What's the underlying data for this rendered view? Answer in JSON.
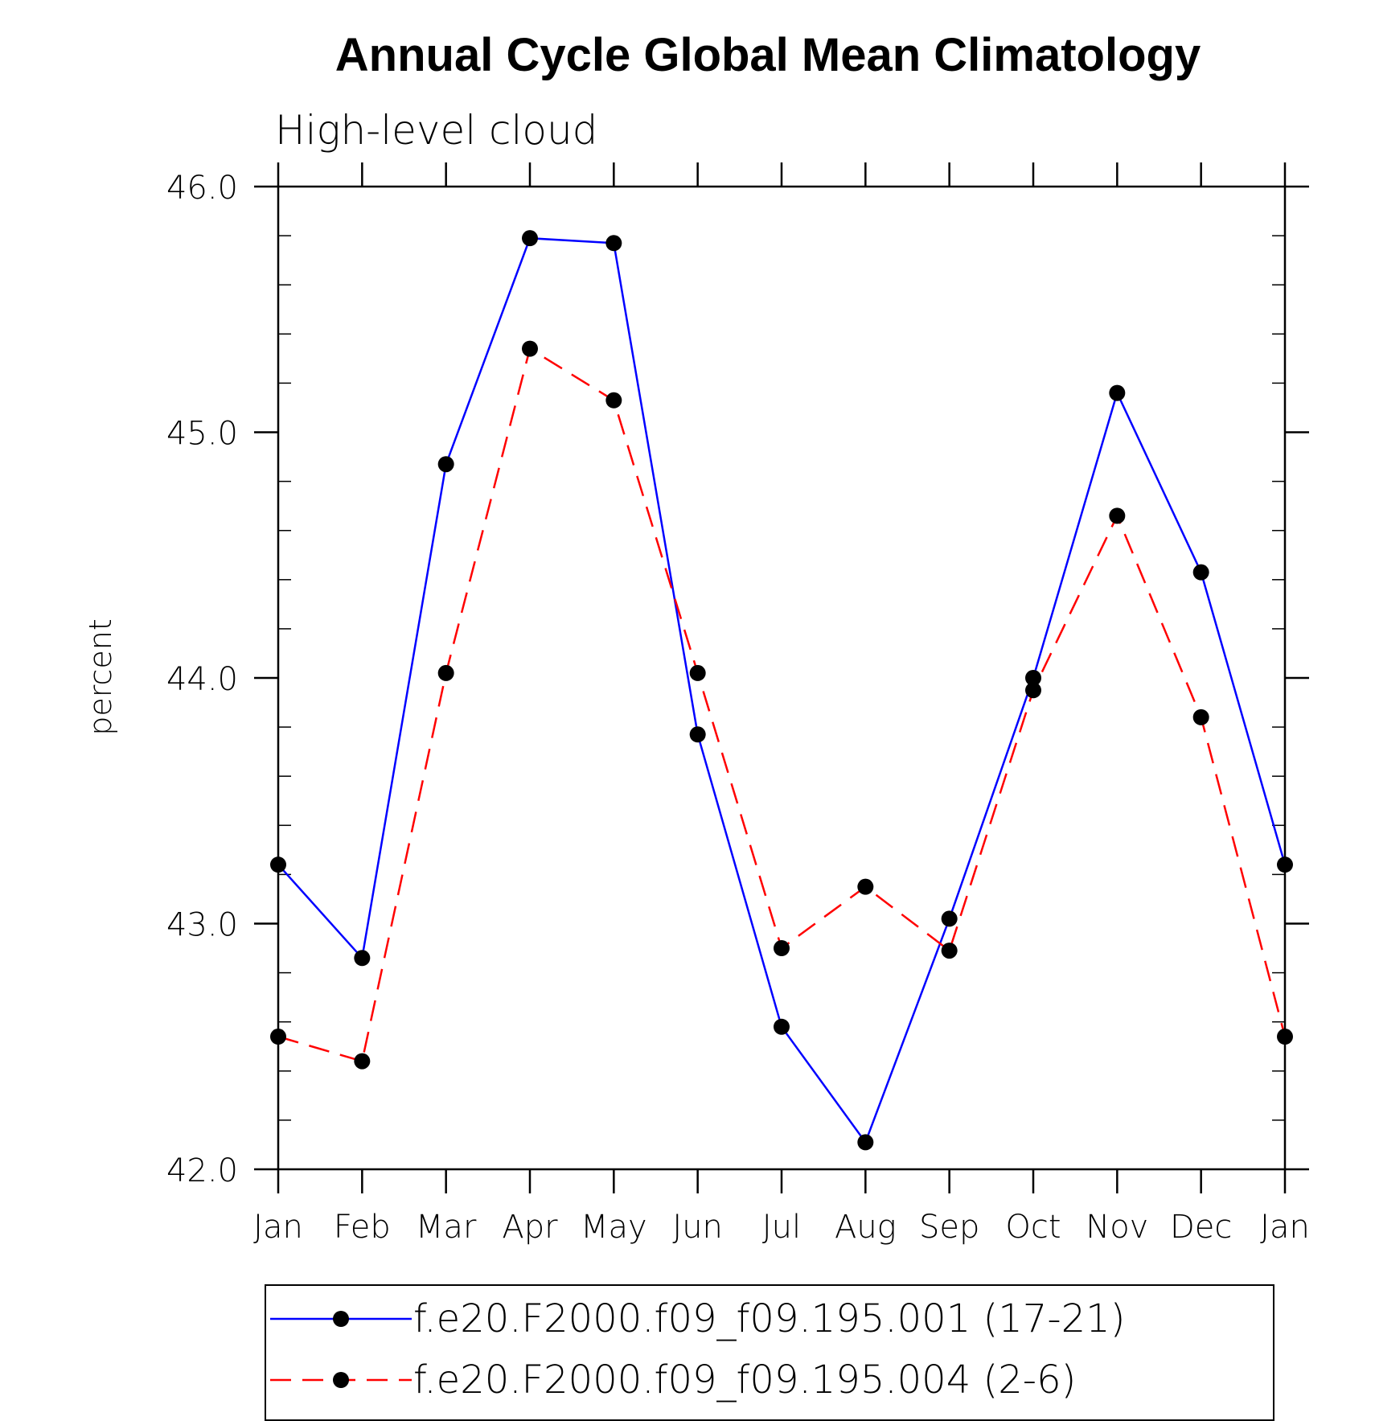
{
  "chart_data": {
    "type": "line",
    "title": "Annual Cycle Global Mean Climatology",
    "subtitle": "High-level cloud",
    "xlabel": "",
    "ylabel": "percent",
    "categories": [
      "Jan",
      "Feb",
      "Mar",
      "Apr",
      "May",
      "Jun",
      "Jul",
      "Aug",
      "Sep",
      "Oct",
      "Nov",
      "Dec",
      "Jan"
    ],
    "ylim": [
      42.0,
      46.0
    ],
    "yticks": [
      "42.0",
      "43.0",
      "44.0",
      "45.0",
      "46.0"
    ],
    "grid": false,
    "legend_position": "bottom",
    "series": [
      {
        "name": "f.e20.F2000.f09_f09.195.001 (17-21)",
        "color": "#0000ff",
        "style": "solid",
        "values": [
          43.24,
          42.86,
          44.87,
          45.79,
          45.77,
          43.77,
          42.58,
          42.11,
          43.02,
          44.0,
          45.16,
          44.43,
          43.24
        ]
      },
      {
        "name": "f.e20.F2000.f09_f09.195.004 (2-6)",
        "color": "#ff0000",
        "style": "dashed",
        "values": [
          42.54,
          42.44,
          44.02,
          45.34,
          45.13,
          44.02,
          42.9,
          43.15,
          42.89,
          43.95,
          44.66,
          43.84,
          42.54
        ]
      }
    ]
  }
}
